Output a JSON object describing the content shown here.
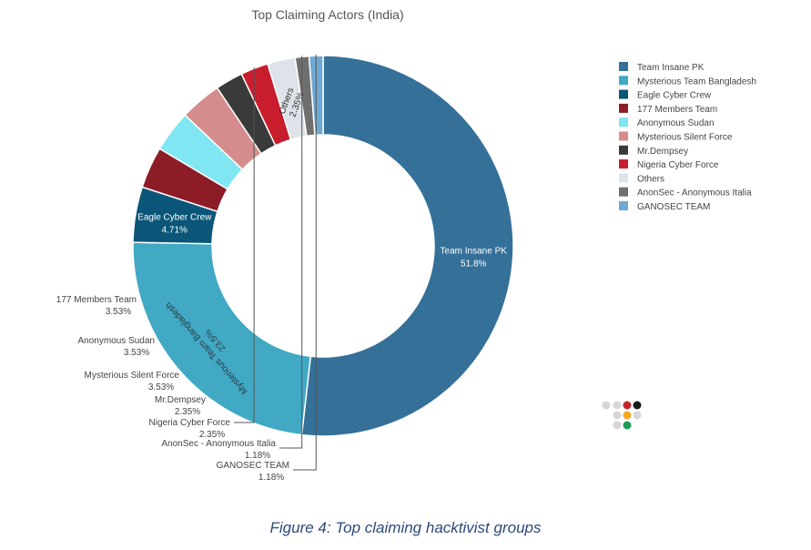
{
  "chart_data": {
    "type": "pie",
    "title": "Top Claiming Actors (India)",
    "slices": [
      {
        "name": "Team Insane PK",
        "value": 51.8,
        "label": "51.8%",
        "color": "#357099"
      },
      {
        "name": "Mysterious Team Bangladesh",
        "value": 23.5,
        "label": "23.5%",
        "color": "#41a9c4"
      },
      {
        "name": "Eagle Cyber Crew",
        "value": 4.71,
        "label": "4.71%",
        "color": "#0b5678"
      },
      {
        "name": "177 Members Team",
        "value": 3.53,
        "label": "3.53%",
        "color": "#8c1d27"
      },
      {
        "name": "Anonymous Sudan",
        "value": 3.53,
        "label": "3.53%",
        "color": "#7fe6f2"
      },
      {
        "name": "Mysterious Silent Force",
        "value": 3.53,
        "label": "3.53%",
        "color": "#d58c8d"
      },
      {
        "name": "Mr.Dempsey",
        "value": 2.35,
        "label": "2.35%",
        "color": "#3a3a3a"
      },
      {
        "name": "Nigeria Cyber Force",
        "value": 2.35,
        "label": "2.35%",
        "color": "#c81d2d"
      },
      {
        "name": "Others",
        "value": 2.35,
        "label": "2.35%",
        "color": "#dde3e8"
      },
      {
        "name": "AnonSec - Anonymous Italia",
        "value": 1.18,
        "label": "1.18%",
        "color": "#6f6f6f"
      },
      {
        "name": "GANOSEC TEAM",
        "value": 1.18,
        "label": "1.18%",
        "color": "#6ea8d3"
      }
    ],
    "legend_position": "right"
  },
  "caption": "Figure 4: Top claiming hacktivist groups",
  "logo_dot_colors": [
    "#d6d6d6",
    "#d6d6d6",
    "#c8232c",
    "#1a1a1a",
    "#d6d6d6",
    "#f5a623",
    "#d6d6d6",
    "#d6d6d6",
    "#1f9d55"
  ]
}
